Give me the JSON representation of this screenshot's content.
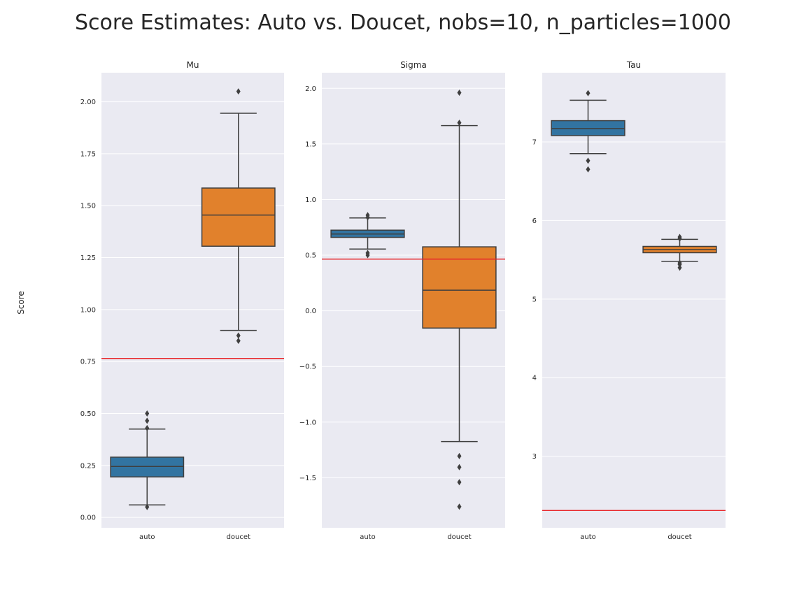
{
  "figure": {
    "title": "Score Estimates: Auto vs. Doucet, nobs=10, n_particles=1000",
    "ylabel": "Score"
  },
  "colors": {
    "panel_bg": "#eaeaf2",
    "grid": "#ffffff",
    "auto": "#3274a1",
    "doucet": "#e1812c",
    "reference_line": "#e8262a",
    "box_edge": "#3f3f3f"
  },
  "chart_data": [
    {
      "type": "box",
      "title": "Mu",
      "categories": [
        "auto",
        "doucet"
      ],
      "ylim": [
        -0.05,
        2.14
      ],
      "yticks": [
        0.0,
        0.25,
        0.5,
        0.75,
        1.0,
        1.25,
        1.5,
        1.75,
        2.0
      ],
      "ytick_labels": [
        "0.00",
        "0.25",
        "0.50",
        "0.75",
        "1.00",
        "1.25",
        "1.50",
        "1.75",
        "2.00"
      ],
      "reference_line": 0.765,
      "grid": true,
      "boxes": [
        {
          "name": "auto",
          "q1": 0.195,
          "median": 0.245,
          "q3": 0.29,
          "whisker_low": 0.06,
          "whisker_high": 0.425,
          "outliers": [
            0.05,
            0.43,
            0.465,
            0.5
          ]
        },
        {
          "name": "doucet",
          "q1": 1.305,
          "median": 1.455,
          "q3": 1.585,
          "whisker_low": 0.9,
          "whisker_high": 1.945,
          "outliers": [
            0.85,
            0.875,
            2.05
          ]
        }
      ]
    },
    {
      "type": "box",
      "title": "Sigma",
      "categories": [
        "auto",
        "doucet"
      ],
      "ylim": [
        -1.95,
        2.14
      ],
      "yticks": [
        -1.5,
        -1.0,
        -0.5,
        0.0,
        0.5,
        1.0,
        1.5,
        2.0
      ],
      "ytick_labels": [
        "−1.5",
        "−1.0",
        "−0.5",
        "0.0",
        "0.5",
        "1.0",
        "1.5",
        "2.0"
      ],
      "reference_line": 0.465,
      "grid": true,
      "boxes": [
        {
          "name": "auto",
          "q1": 0.66,
          "median": 0.69,
          "q3": 0.725,
          "whisker_low": 0.555,
          "whisker_high": 0.835,
          "outliers": [
            0.5,
            0.52,
            0.84,
            0.86
          ]
        },
        {
          "name": "doucet",
          "q1": -0.155,
          "median": 0.185,
          "q3": 0.575,
          "whisker_low": -1.175,
          "whisker_high": 1.665,
          "outliers": [
            -1.76,
            -1.54,
            -1.405,
            -1.305,
            1.69,
            1.96
          ]
        }
      ]
    },
    {
      "type": "box",
      "title": "Tau",
      "categories": [
        "auto",
        "doucet"
      ],
      "ylim": [
        2.09,
        7.88
      ],
      "yticks": [
        3,
        4,
        5,
        6,
        7
      ],
      "ytick_labels": [
        "3",
        "4",
        "5",
        "6",
        "7"
      ],
      "reference_line": 2.31,
      "grid": true,
      "boxes": [
        {
          "name": "auto",
          "q1": 7.08,
          "median": 7.17,
          "q3": 7.27,
          "whisker_low": 6.85,
          "whisker_high": 7.53,
          "outliers": [
            6.65,
            6.76,
            7.62
          ]
        },
        {
          "name": "doucet",
          "q1": 5.59,
          "median": 5.63,
          "q3": 5.67,
          "whisker_low": 5.48,
          "whisker_high": 5.76,
          "outliers": [
            5.4,
            5.44,
            5.46,
            5.77,
            5.79
          ]
        }
      ]
    }
  ]
}
